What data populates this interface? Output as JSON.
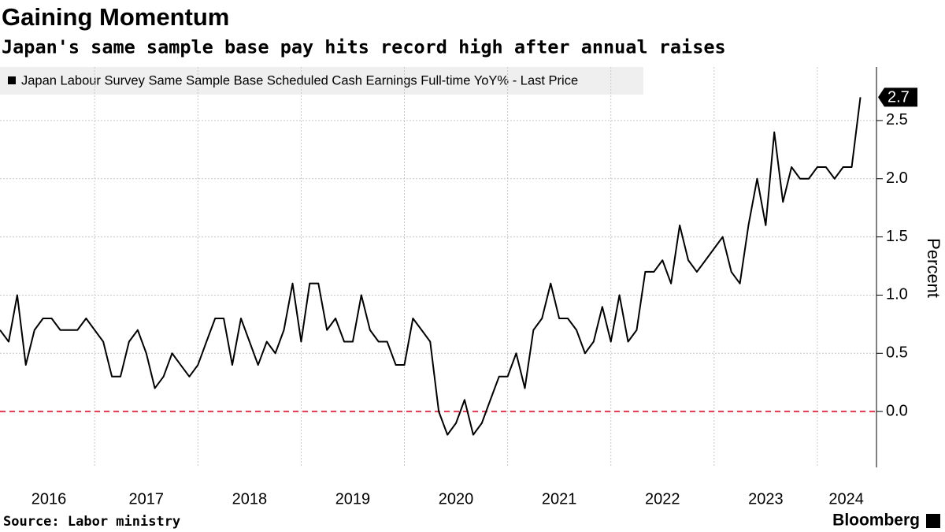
{
  "chart_data": {
    "type": "line",
    "title": "Gaining Momentum",
    "subtitle": "Japan's same sample base pay hits record high after annual raises",
    "source": "Source: Labor ministry",
    "brand": "Bloomberg",
    "y_label": "Percent",
    "x": [
      2016.083,
      2016.167,
      2016.25,
      2016.333,
      2016.417,
      2016.5,
      2016.583,
      2016.667,
      2016.75,
      2016.833,
      2016.917,
      2017,
      2017.083,
      2017.167,
      2017.25,
      2017.333,
      2017.417,
      2017.5,
      2017.583,
      2017.667,
      2017.75,
      2017.833,
      2017.917,
      2018,
      2018.083,
      2018.167,
      2018.25,
      2018.333,
      2018.417,
      2018.5,
      2018.583,
      2018.667,
      2018.75,
      2018.833,
      2018.917,
      2019,
      2019.083,
      2019.167,
      2019.25,
      2019.333,
      2019.417,
      2019.5,
      2019.583,
      2019.667,
      2019.75,
      2019.833,
      2019.917,
      2020,
      2020.083,
      2020.167,
      2020.25,
      2020.333,
      2020.417,
      2020.5,
      2020.583,
      2020.667,
      2020.75,
      2020.833,
      2020.917,
      2021,
      2021.083,
      2021.167,
      2021.25,
      2021.333,
      2021.417,
      2021.5,
      2021.583,
      2021.667,
      2021.75,
      2021.833,
      2021.917,
      2022,
      2022.083,
      2022.167,
      2022.25,
      2022.333,
      2022.417,
      2022.5,
      2022.583,
      2022.667,
      2022.75,
      2022.833,
      2022.917,
      2023,
      2023.083,
      2023.167,
      2023.25,
      2023.333,
      2023.417,
      2023.5,
      2023.583,
      2023.667,
      2023.75,
      2023.833,
      2023.917,
      2024,
      2024.083,
      2024.167,
      2024.25,
      2024.333,
      2024.417
    ],
    "series": [
      {
        "name": "Japan Labour Survey Same Sample Base Scheduled Cash Earnings Full-time YoY% - Last Price",
        "color": "#000000",
        "values": [
          0.7,
          0.6,
          1.0,
          0.4,
          0.7,
          0.8,
          0.8,
          0.7,
          0.7,
          0.7,
          0.8,
          0.7,
          0.6,
          0.3,
          0.3,
          0.6,
          0.7,
          0.5,
          0.2,
          0.3,
          0.5,
          0.4,
          0.3,
          0.4,
          0.6,
          0.8,
          0.8,
          0.4,
          0.8,
          0.6,
          0.4,
          0.6,
          0.5,
          0.7,
          1.1,
          0.6,
          1.1,
          1.1,
          0.7,
          0.8,
          0.6,
          0.6,
          1.0,
          0.7,
          0.6,
          0.6,
          0.4,
          0.4,
          0.8,
          0.7,
          0.6,
          0.0,
          -0.2,
          -0.1,
          0.1,
          -0.2,
          -0.1,
          0.1,
          0.3,
          0.3,
          0.5,
          0.2,
          0.7,
          0.8,
          1.1,
          0.8,
          0.8,
          0.7,
          0.5,
          0.6,
          0.9,
          0.6,
          1.0,
          0.6,
          0.7,
          1.2,
          1.2,
          1.3,
          1.1,
          1.6,
          1.3,
          1.2,
          1.3,
          1.4,
          1.5,
          1.2,
          1.1,
          1.6,
          2.0,
          1.6,
          2.4,
          1.8,
          2.1,
          2.0,
          2.0,
          2.1,
          2.1,
          2.0,
          2.1,
          2.1,
          2.7
        ]
      }
    ],
    "last_value": 2.7,
    "xlim": [
      2016.083,
      2024.573
    ],
    "xticks": [
      {
        "value": 2016.556,
        "label": "2016"
      },
      {
        "value": 2017.5,
        "label": "2017"
      },
      {
        "value": 2018.5,
        "label": "2018"
      },
      {
        "value": 2019.5,
        "label": "2019"
      },
      {
        "value": 2020.5,
        "label": "2020"
      },
      {
        "value": 2021.5,
        "label": "2021"
      },
      {
        "value": 2022.5,
        "label": "2022"
      },
      {
        "value": 2023.5,
        "label": "2023"
      },
      {
        "value": 2024.28,
        "label": "2024"
      }
    ],
    "xgrid": [
      2017,
      2018,
      2019,
      2020,
      2021,
      2022,
      2023,
      2024
    ],
    "ylim": [
      -0.48,
      2.96
    ],
    "yticks": [
      {
        "value": 0,
        "label": "0.0"
      },
      0.5,
      {
        "value": 1,
        "label": "1.0"
      },
      1.5,
      {
        "value": 2,
        "label": "2.0"
      },
      2.5
    ],
    "grid": true,
    "zero_line_color": "#e8364f"
  }
}
